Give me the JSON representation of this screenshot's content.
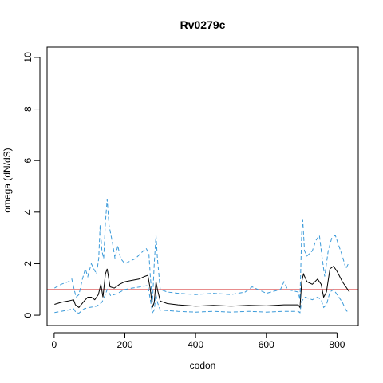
{
  "chart_data": {
    "type": "line",
    "title": "Rv0279c",
    "xlabel": "codon",
    "ylabel": "omega (dN/dS)",
    "xlim": [
      -20,
      860
    ],
    "ylim": [
      -0.4,
      10.4
    ],
    "x_ticks": [
      0,
      200,
      400,
      600,
      800
    ],
    "y_ticks": [
      0,
      2,
      4,
      6,
      8,
      10
    ],
    "reference_line": {
      "y": 1,
      "color": "#e06666"
    },
    "grid": false,
    "series": [
      {
        "role": "estimate",
        "color": "#000000",
        "style": "solid",
        "points": [
          [
            1,
            0.42
          ],
          [
            20,
            0.5
          ],
          [
            40,
            0.55
          ],
          [
            55,
            0.6
          ],
          [
            60,
            0.4
          ],
          [
            70,
            0.3
          ],
          [
            85,
            0.55
          ],
          [
            95,
            0.7
          ],
          [
            105,
            0.7
          ],
          [
            115,
            0.6
          ],
          [
            125,
            0.8
          ],
          [
            132,
            1.2
          ],
          [
            138,
            0.7
          ],
          [
            145,
            1.6
          ],
          [
            150,
            1.8
          ],
          [
            158,
            1.1
          ],
          [
            170,
            1.05
          ],
          [
            185,
            1.2
          ],
          [
            200,
            1.3
          ],
          [
            220,
            1.35
          ],
          [
            240,
            1.4
          ],
          [
            255,
            1.5
          ],
          [
            265,
            1.55
          ],
          [
            272,
            1.0
          ],
          [
            278,
            0.3
          ],
          [
            283,
            0.5
          ],
          [
            288,
            1.3
          ],
          [
            292,
            1.0
          ],
          [
            300,
            0.55
          ],
          [
            320,
            0.45
          ],
          [
            350,
            0.4
          ],
          [
            400,
            0.35
          ],
          [
            450,
            0.38
          ],
          [
            500,
            0.35
          ],
          [
            550,
            0.38
          ],
          [
            600,
            0.36
          ],
          [
            650,
            0.4
          ],
          [
            690,
            0.4
          ],
          [
            695,
            0.3
          ],
          [
            700,
            1.3
          ],
          [
            705,
            1.6
          ],
          [
            715,
            1.3
          ],
          [
            730,
            1.2
          ],
          [
            745,
            1.4
          ],
          [
            755,
            1.2
          ],
          [
            762,
            0.7
          ],
          [
            770,
            0.9
          ],
          [
            780,
            1.8
          ],
          [
            790,
            1.9
          ],
          [
            800,
            1.7
          ],
          [
            815,
            1.3
          ],
          [
            825,
            1.1
          ],
          [
            835,
            0.9
          ]
        ]
      },
      {
        "role": "upper bound",
        "color": "#3b9ad9",
        "style": "dashed",
        "points": [
          [
            1,
            1.05
          ],
          [
            20,
            1.2
          ],
          [
            40,
            1.3
          ],
          [
            50,
            1.4
          ],
          [
            55,
            1.1
          ],
          [
            62,
            0.7
          ],
          [
            70,
            0.8
          ],
          [
            80,
            1.4
          ],
          [
            88,
            1.8
          ],
          [
            95,
            1.5
          ],
          [
            105,
            2.0
          ],
          [
            112,
            1.8
          ],
          [
            120,
            1.6
          ],
          [
            126,
            2.2
          ],
          [
            130,
            3.5
          ],
          [
            135,
            2.5
          ],
          [
            140,
            2.2
          ],
          [
            145,
            3.6
          ],
          [
            150,
            4.5
          ],
          [
            155,
            3.5
          ],
          [
            165,
            2.8
          ],
          [
            172,
            2.2
          ],
          [
            180,
            2.7
          ],
          [
            188,
            2.2
          ],
          [
            200,
            2.0
          ],
          [
            215,
            2.1
          ],
          [
            230,
            2.2
          ],
          [
            245,
            2.4
          ],
          [
            260,
            2.6
          ],
          [
            268,
            2.4
          ],
          [
            272,
            1.5
          ],
          [
            278,
            0.5
          ],
          [
            283,
            2.0
          ],
          [
            288,
            3.1
          ],
          [
            292,
            2.2
          ],
          [
            300,
            1.0
          ],
          [
            320,
            0.9
          ],
          [
            350,
            0.85
          ],
          [
            400,
            0.8
          ],
          [
            450,
            0.85
          ],
          [
            500,
            0.8
          ],
          [
            540,
            0.9
          ],
          [
            560,
            1.1
          ],
          [
            600,
            0.85
          ],
          [
            640,
            1.0
          ],
          [
            650,
            1.3
          ],
          [
            660,
            1.0
          ],
          [
            690,
            0.9
          ],
          [
            695,
            0.6
          ],
          [
            700,
            3.2
          ],
          [
            703,
            3.7
          ],
          [
            708,
            2.5
          ],
          [
            715,
            2.3
          ],
          [
            730,
            2.5
          ],
          [
            740,
            2.9
          ],
          [
            750,
            3.1
          ],
          [
            758,
            2.2
          ],
          [
            765,
            1.5
          ],
          [
            775,
            2.5
          ],
          [
            785,
            3.0
          ],
          [
            795,
            3.1
          ],
          [
            805,
            2.7
          ],
          [
            815,
            2.3
          ],
          [
            825,
            1.8
          ],
          [
            832,
            2.0
          ]
        ]
      },
      {
        "role": "lower bound",
        "color": "#3b9ad9",
        "style": "dashed",
        "points": [
          [
            1,
            0.1
          ],
          [
            20,
            0.15
          ],
          [
            40,
            0.2
          ],
          [
            55,
            0.25
          ],
          [
            62,
            0.1
          ],
          [
            70,
            0.08
          ],
          [
            85,
            0.25
          ],
          [
            100,
            0.3
          ],
          [
            120,
            0.35
          ],
          [
            135,
            0.5
          ],
          [
            145,
            0.8
          ],
          [
            150,
            1.0
          ],
          [
            160,
            0.75
          ],
          [
            180,
            0.85
          ],
          [
            200,
            1.0
          ],
          [
            220,
            1.05
          ],
          [
            245,
            1.1
          ],
          [
            265,
            1.15
          ],
          [
            272,
            0.6
          ],
          [
            278,
            0.1
          ],
          [
            283,
            0.2
          ],
          [
            288,
            0.8
          ],
          [
            292,
            0.5
          ],
          [
            300,
            0.2
          ],
          [
            350,
            0.15
          ],
          [
            400,
            0.12
          ],
          [
            450,
            0.15
          ],
          [
            500,
            0.12
          ],
          [
            550,
            0.15
          ],
          [
            600,
            0.12
          ],
          [
            650,
            0.15
          ],
          [
            690,
            0.15
          ],
          [
            695,
            0.1
          ],
          [
            700,
            0.55
          ],
          [
            710,
            0.7
          ],
          [
            730,
            0.6
          ],
          [
            745,
            0.7
          ],
          [
            755,
            0.6
          ],
          [
            762,
            0.3
          ],
          [
            770,
            0.4
          ],
          [
            780,
            0.9
          ],
          [
            790,
            1.0
          ],
          [
            800,
            0.8
          ],
          [
            815,
            0.5
          ],
          [
            825,
            0.2
          ],
          [
            832,
            0.1
          ]
        ]
      }
    ]
  }
}
